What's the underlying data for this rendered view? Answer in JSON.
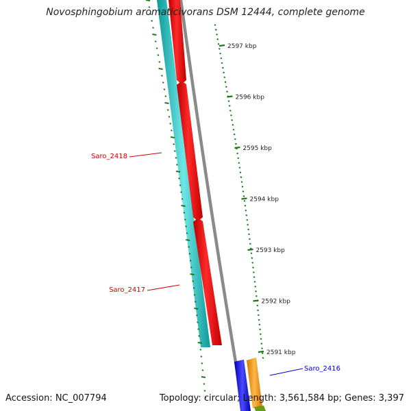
{
  "title": "Novosphingobium aromaticivorans DSM 12444, complete genome",
  "accession_text": "Accession: NC_007794",
  "summary_text": "Topology: circular; Length: 3,561,584 bp; Genes: 3,397",
  "ticks": [
    {
      "label": "2597 kbp"
    },
    {
      "label": "2596 kbp"
    },
    {
      "label": "2595 kbp"
    },
    {
      "label": "2594 kbp"
    },
    {
      "label": "2593 kbp"
    },
    {
      "label": "2592 kbp"
    },
    {
      "label": "2591 kbp"
    }
  ],
  "genes": [
    {
      "label": "Saro_2418",
      "color": "#cc0000"
    },
    {
      "label": "Saro_2417",
      "color": "#cc0000"
    },
    {
      "label": "Saro_2416",
      "color": "#0000cc"
    }
  ],
  "colors": {
    "cds_track": "#ff0000",
    "orf_track": "#19c4c4",
    "backbone": "#8a8a8a",
    "tick": "#1a7a1a",
    "gene_blue": "#1a1aee",
    "gene_orange": "#ff9900",
    "gene_olive": "#6a9a1a"
  }
}
